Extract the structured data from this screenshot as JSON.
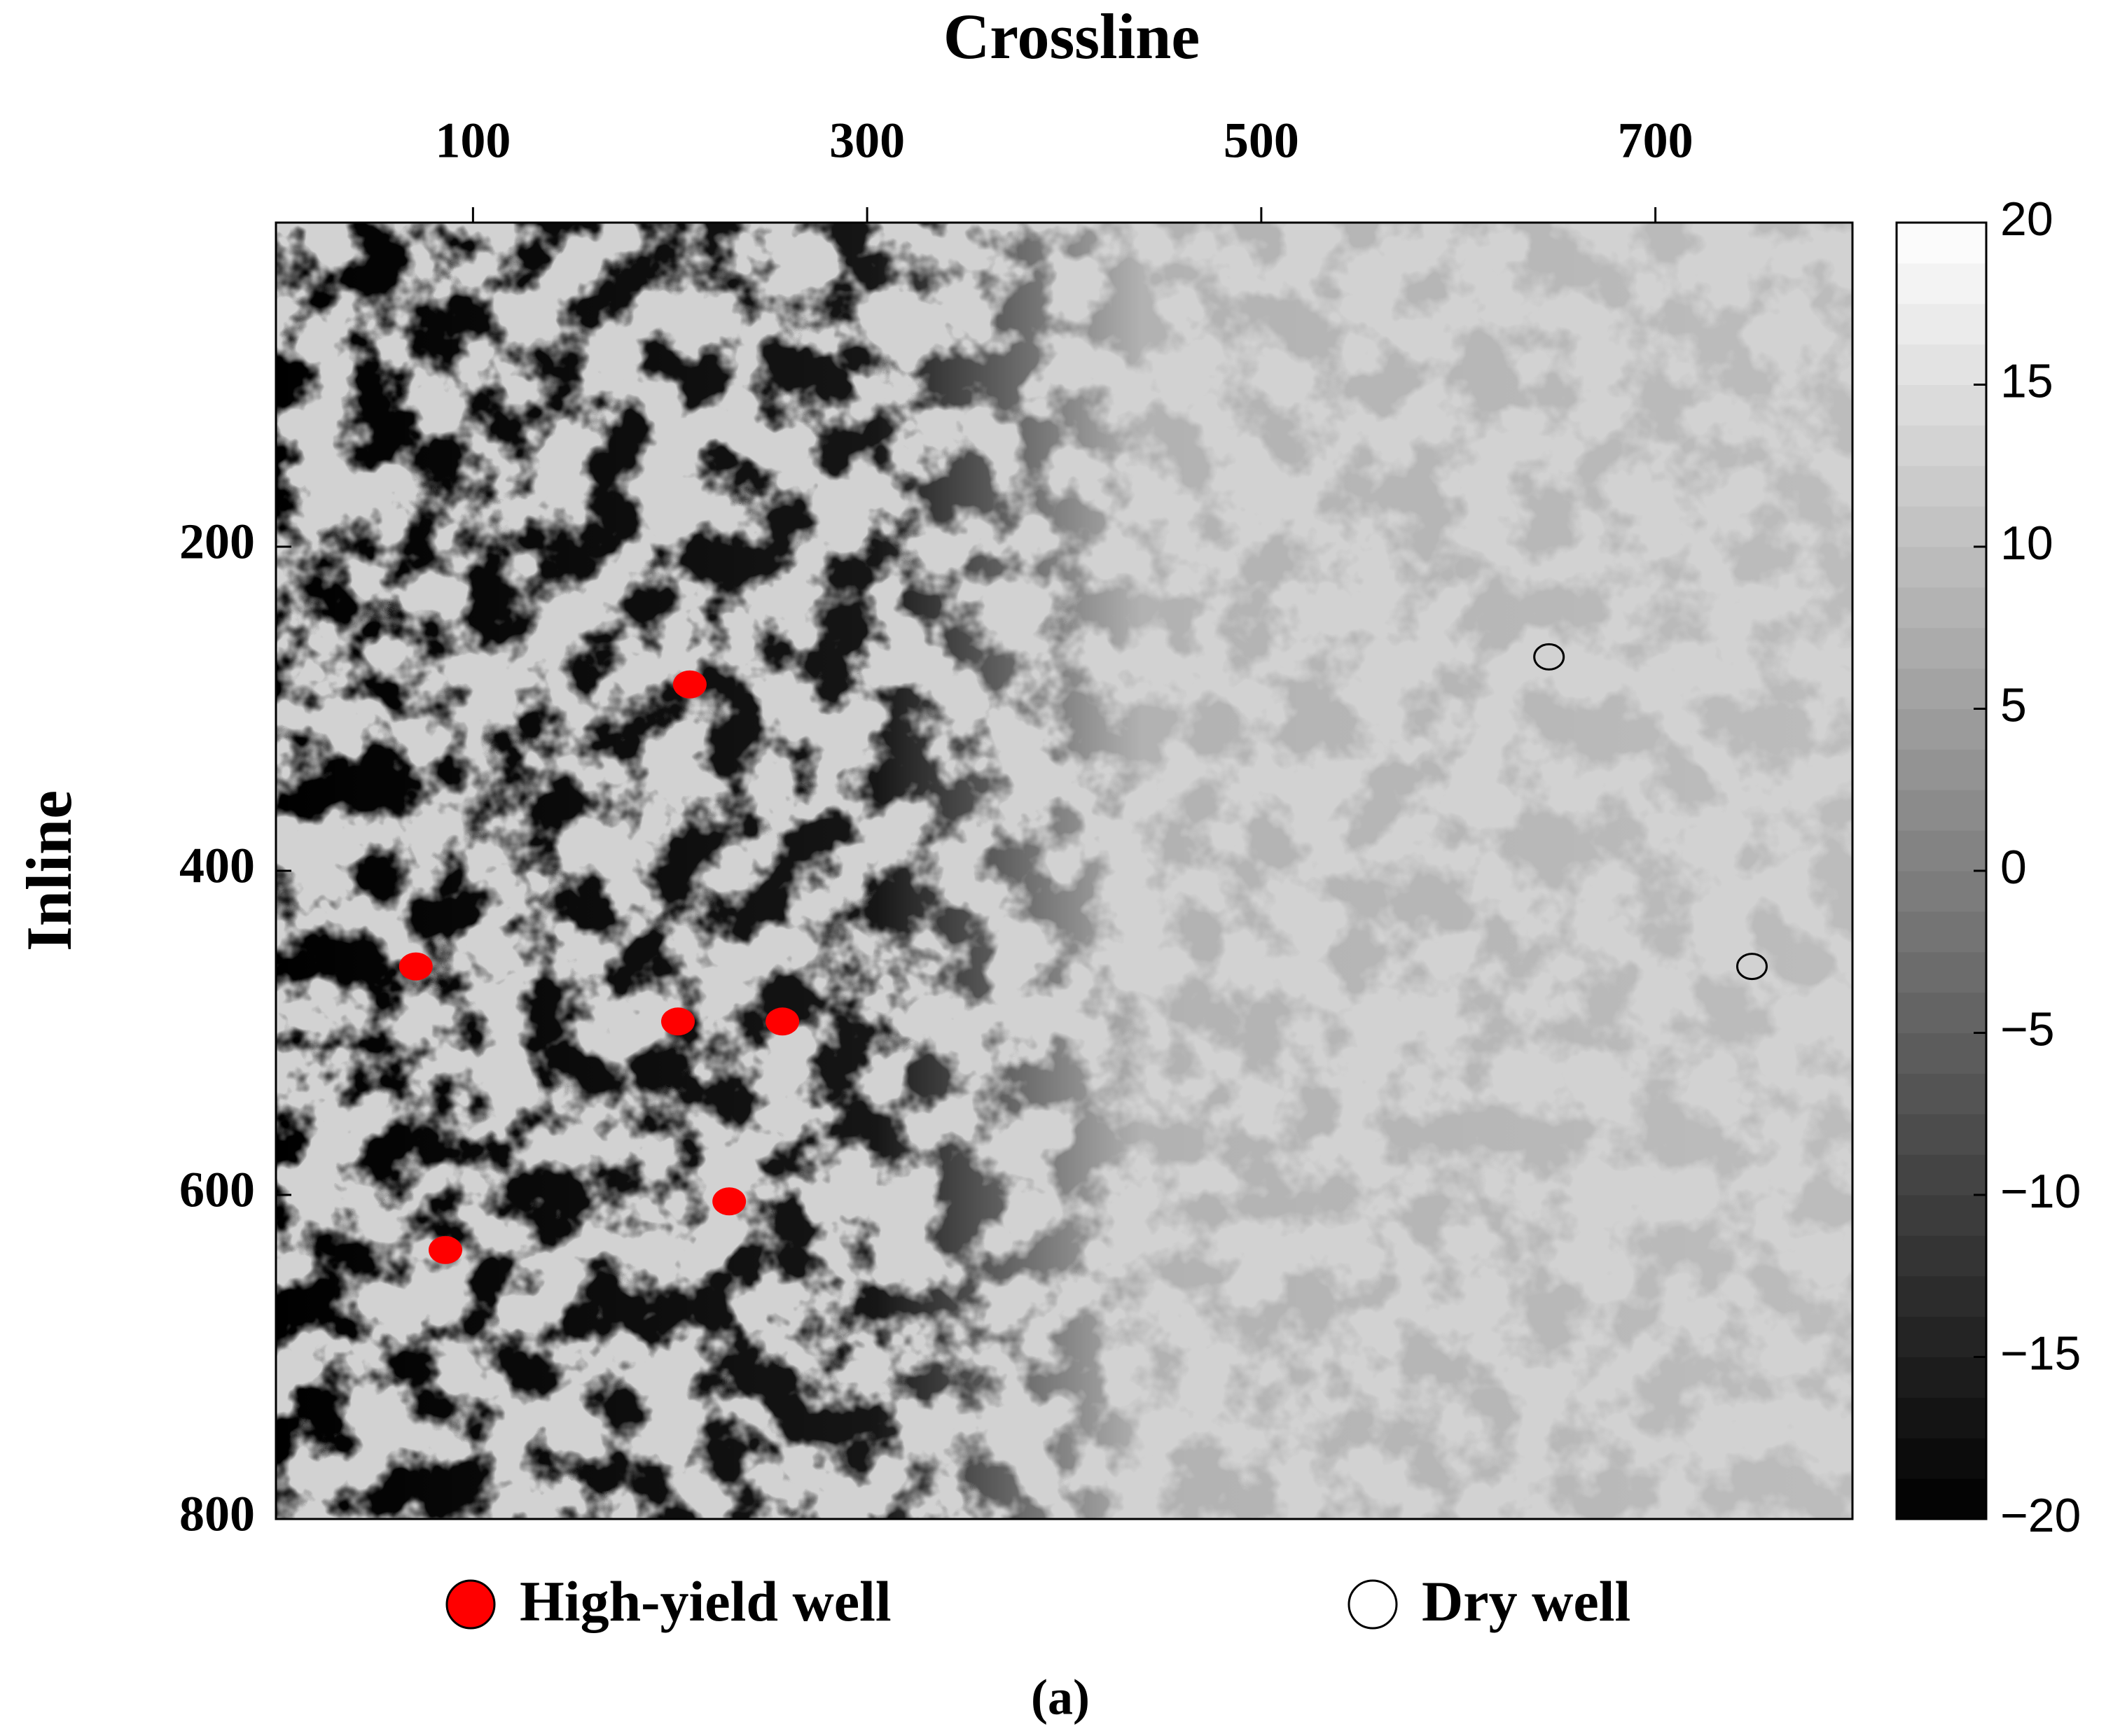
{
  "chart_data": {
    "type": "scatter",
    "x_label": "Crossline",
    "y_label": "Inline",
    "x_axis_position": "top",
    "y_inverted": true,
    "xlim": [
      0,
      800
    ],
    "ylim": [
      0,
      800
    ],
    "xticks": [
      100,
      300,
      500,
      700
    ],
    "yticks": [
      200,
      400,
      600,
      800
    ],
    "series": [
      {
        "name": "High-yield well",
        "color": "#ff0000",
        "marker": "filled",
        "x": [
          210,
          71,
          204,
          257,
          230,
          86
        ],
        "values": [
          285,
          459,
          493,
          493,
          604,
          634
        ]
      },
      {
        "name": "Dry well",
        "color": "#000000",
        "marker": "hollow",
        "x": [
          646,
          749
        ],
        "values": [
          268,
          459
        ]
      }
    ],
    "colorbar": {
      "colormap": "gray",
      "lim": [
        -20,
        20
      ],
      "ticks": [
        20,
        15,
        10,
        5,
        0,
        {
          "value": -5,
          "label": "−5"
        },
        {
          "value": -10,
          "label": "−10"
        },
        {
          "value": -15,
          "label": "−15"
        },
        {
          "value": -20,
          "label": "−20"
        }
      ]
    },
    "caption": "(a)"
  }
}
